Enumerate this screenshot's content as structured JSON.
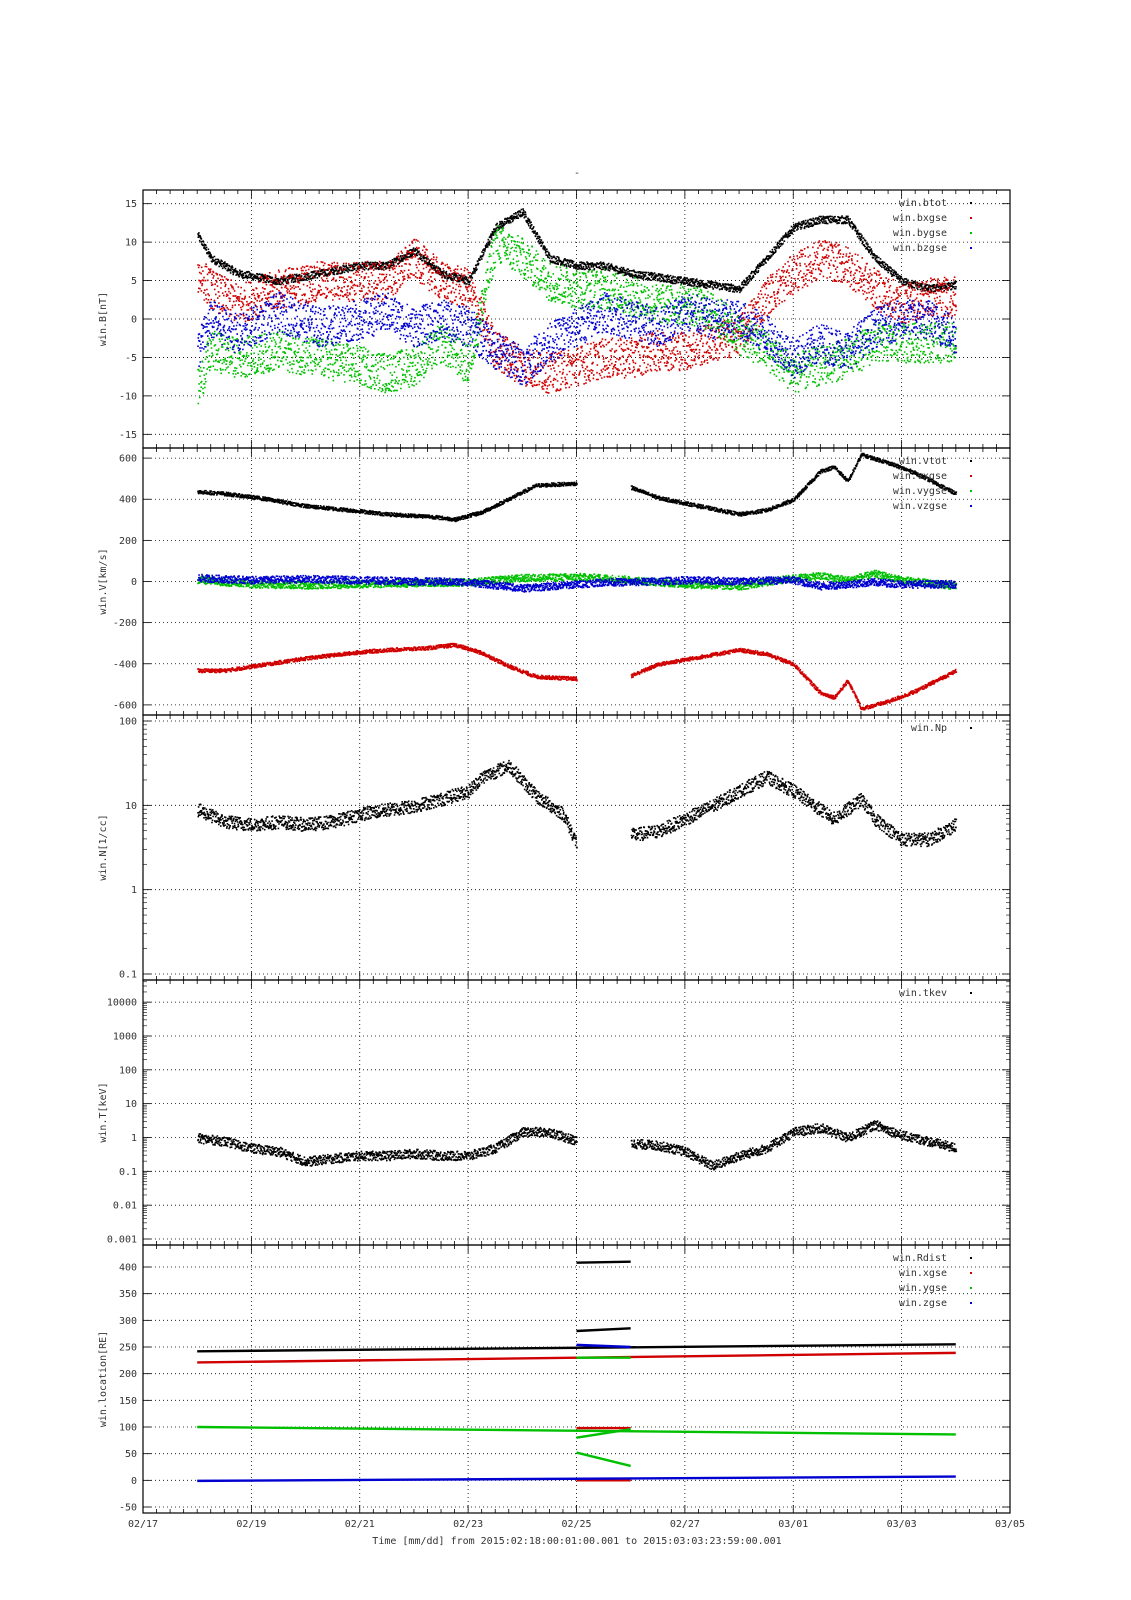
{
  "figure": {
    "title": "-",
    "footer": "Time [mm/dd]  from 2015:02:18:00:01:00.001  to  2015:03:03:23:59:00.001",
    "x_tick_labels": [
      "02/17",
      "02/19",
      "02/21",
      "02/23",
      "02/25",
      "02/27",
      "03/01",
      "03/03",
      "03/05"
    ]
  },
  "chart_data": [
    {
      "type": "scatter",
      "ylabel": "win.B[nT]",
      "xlim": [
        "2015-02-17",
        "2015-03-05"
      ],
      "ylim": [
        -16,
        16
      ],
      "yscale": "linear",
      "yticks": [
        -15,
        -10,
        -5,
        0,
        5,
        10,
        15
      ],
      "ytick_labels": [
        "-15",
        "-10",
        "-5",
        "0",
        "5",
        "10",
        "15"
      ],
      "grid": true,
      "legend_position": "top-right",
      "series": [
        {
          "name": "win.btot",
          "color": "#000000",
          "x": [
            "2015-02-18 00:00",
            "2015-02-18 06:00",
            "2015-02-18 18:00",
            "2015-02-19 12:00",
            "2015-02-20 06:00",
            "2015-02-21 00:00",
            "2015-02-21 12:00",
            "2015-02-22 00:00",
            "2015-02-22 12:00",
            "2015-02-23 00:00",
            "2015-02-23 12:00",
            "2015-02-24 00:00",
            "2015-02-24 12:00",
            "2015-02-25 00:00",
            "2015-02-25 12:00",
            "2015-02-26 00:00",
            "2015-02-26 12:00",
            "2015-02-27 00:00",
            "2015-02-27 12:00",
            "2015-02-28 00:00",
            "2015-02-28 12:00",
            "2015-03-01 00:00",
            "2015-03-01 12:00",
            "2015-03-02 00:00",
            "2015-03-02 12:00",
            "2015-03-03 00:00",
            "2015-03-03 12:00",
            "2015-03-03 23:59"
          ],
          "y": [
            11,
            8,
            6,
            5,
            6,
            7,
            7,
            9,
            6,
            5,
            12,
            14,
            8,
            7,
            7,
            6,
            5.5,
            5,
            4.5,
            4,
            8,
            12,
            13,
            13,
            8,
            5,
            4,
            4.5
          ]
        },
        {
          "name": "win.bxgse",
          "color": "#d00000",
          "x": [
            "2015-02-18 00:00",
            "2015-02-18 06:00",
            "2015-02-18 18:00",
            "2015-02-19 12:00",
            "2015-02-20 06:00",
            "2015-02-21 00:00",
            "2015-02-21 12:00",
            "2015-02-22 00:00",
            "2015-02-22 12:00",
            "2015-02-23 00:00",
            "2015-02-23 12:00",
            "2015-02-24 00:00",
            "2015-02-24 12:00",
            "2015-02-25 00:00",
            "2015-02-25 12:00",
            "2015-02-26 00:00",
            "2015-02-26 12:00",
            "2015-02-27 00:00",
            "2015-02-27 12:00",
            "2015-02-28 00:00",
            "2015-02-28 12:00",
            "2015-03-01 00:00",
            "2015-03-01 12:00",
            "2015-03-02 00:00",
            "2015-03-02 12:00",
            "2015-03-03 00:00",
            "2015-03-03 12:00",
            "2015-03-03 23:59"
          ],
          "y": [
            6,
            4,
            2,
            4,
            5,
            5,
            5,
            8,
            5,
            4,
            -4,
            -6,
            -7,
            -6,
            -5,
            -5,
            -4,
            -4,
            -3,
            -2,
            3,
            6,
            8,
            7,
            4,
            2,
            3,
            3
          ]
        },
        {
          "name": "win.bygse",
          "color": "#00c000",
          "x": [
            "2015-02-18 00:00",
            "2015-02-18 06:00",
            "2015-02-18 18:00",
            "2015-02-19 12:00",
            "2015-02-20 06:00",
            "2015-02-21 00:00",
            "2015-02-21 12:00",
            "2015-02-22 00:00",
            "2015-02-22 12:00",
            "2015-02-23 00:00",
            "2015-02-23 12:00",
            "2015-02-24 00:00",
            "2015-02-24 12:00",
            "2015-02-25 00:00",
            "2015-02-25 12:00",
            "2015-02-26 00:00",
            "2015-02-26 12:00",
            "2015-02-27 00:00",
            "2015-02-27 12:00",
            "2015-02-28 00:00",
            "2015-02-28 12:00",
            "2015-03-01 00:00",
            "2015-03-01 12:00",
            "2015-03-02 00:00",
            "2015-03-02 12:00",
            "2015-03-03 00:00",
            "2015-03-03 12:00",
            "2015-03-03 23:59"
          ],
          "y": [
            -9,
            -4,
            -5,
            -4,
            -5,
            -6,
            -7,
            -6,
            -3,
            -6,
            10,
            8,
            5,
            4,
            4,
            3,
            2,
            2,
            1,
            -2,
            -4,
            -7,
            -6,
            -5,
            -3,
            -3,
            -3,
            -3
          ]
        },
        {
          "name": "win.bzgse",
          "color": "#0000d0",
          "x": [
            "2015-02-18 00:00",
            "2015-02-18 06:00",
            "2015-02-18 18:00",
            "2015-02-19 12:00",
            "2015-02-20 06:00",
            "2015-02-21 00:00",
            "2015-02-21 12:00",
            "2015-02-22 00:00",
            "2015-02-22 12:00",
            "2015-02-23 00:00",
            "2015-02-23 12:00",
            "2015-02-24 00:00",
            "2015-02-24 12:00",
            "2015-02-25 00:00",
            "2015-02-25 12:00",
            "2015-02-26 00:00",
            "2015-02-26 12:00",
            "2015-02-27 00:00",
            "2015-02-27 12:00",
            "2015-02-28 00:00",
            "2015-02-28 12:00",
            "2015-03-01 00:00",
            "2015-03-01 12:00",
            "2015-03-02 00:00",
            "2015-03-02 12:00",
            "2015-03-03 00:00",
            "2015-03-03 12:00",
            "2015-03-03 23:59"
          ],
          "y": [
            -4,
            0,
            -2,
            1,
            -1,
            0,
            1,
            -1,
            0,
            -1,
            -4,
            -6,
            -3,
            -1,
            1,
            0,
            -1,
            1,
            0,
            0,
            -2,
            -5,
            -3,
            -4,
            -1,
            0,
            0,
            -2
          ]
        }
      ]
    },
    {
      "type": "scatter",
      "ylabel": "win.V[km/s]",
      "xlim": [
        "2015-02-17",
        "2015-03-05"
      ],
      "ylim": [
        -620,
        620
      ],
      "yscale": "linear",
      "yticks": [
        -600,
        -400,
        -200,
        0,
        200,
        400,
        600
      ],
      "ytick_labels": [
        "-600",
        "-400",
        "-200",
        "0",
        "200",
        "400",
        "600"
      ],
      "grid": true,
      "legend_position": "top-right",
      "series": [
        {
          "name": "win.vtot",
          "color": "#000000",
          "x": [
            "2015-02-18 00:00",
            "2015-02-18 12:00",
            "2015-02-19 06:00",
            "2015-02-20 00:00",
            "2015-02-21 00:00",
            "2015-02-21 12:00",
            "2015-02-22 06:00",
            "2015-02-22 18:00",
            "2015-02-23 06:00",
            "2015-02-23 18:00",
            "2015-02-24 06:00",
            "2015-02-25 00:00",
            null,
            "2015-02-26 00:00",
            "2015-02-26 12:00",
            "2015-02-27 06:00",
            "2015-02-28 00:00",
            "2015-02-28 12:00",
            "2015-03-01 00:00",
            "2015-03-01 12:00",
            "2015-03-01 18:00",
            "2015-03-02 00:00",
            "2015-03-02 06:00",
            "2015-03-02 18:00",
            "2015-03-03 06:00",
            "2015-03-03 23:59"
          ],
          "y": [
            440,
            430,
            405,
            370,
            345,
            330,
            320,
            305,
            340,
            405,
            470,
            480,
            null,
            460,
            410,
            370,
            330,
            350,
            400,
            540,
            560,
            490,
            620,
            580,
            530,
            430
          ]
        },
        {
          "name": "win.vxgse",
          "color": "#d00000",
          "x": [
            "2015-02-18 00:00",
            "2015-02-18 12:00",
            "2015-02-19 06:00",
            "2015-02-20 00:00",
            "2015-02-21 00:00",
            "2015-02-21 12:00",
            "2015-02-22 06:00",
            "2015-02-22 18:00",
            "2015-02-23 06:00",
            "2015-02-23 18:00",
            "2015-02-24 06:00",
            "2015-02-25 00:00",
            null,
            "2015-02-26 00:00",
            "2015-02-26 12:00",
            "2015-02-27 06:00",
            "2015-02-28 00:00",
            "2015-02-28 12:00",
            "2015-03-01 00:00",
            "2015-03-01 12:00",
            "2015-03-01 18:00",
            "2015-03-02 00:00",
            "2015-03-02 06:00",
            "2015-03-02 18:00",
            "2015-03-03 06:00",
            "2015-03-03 23:59"
          ],
          "y": [
            -430,
            -430,
            -400,
            -370,
            -340,
            -330,
            -320,
            -305,
            -345,
            -410,
            -460,
            -470,
            null,
            -455,
            -400,
            -365,
            -330,
            -350,
            -400,
            -540,
            -560,
            -480,
            -615,
            -580,
            -530,
            -430
          ]
        },
        {
          "name": "win.vygse",
          "color": "#00c000",
          "x": [
            "2015-02-18 00:00",
            "2015-02-19 00:00",
            "2015-02-20 00:00",
            "2015-02-21 00:00",
            "2015-02-22 00:00",
            "2015-02-23 00:00",
            "2015-02-24 00:00",
            "2015-02-25 00:00",
            "2015-02-25 12:00",
            "2015-02-26 00:00",
            "2015-02-27 00:00",
            "2015-02-28 00:00",
            "2015-03-01 00:00",
            "2015-03-01 12:00",
            "2015-03-02 00:00",
            "2015-03-02 12:00",
            "2015-03-03 00:00",
            "2015-03-03 23:59"
          ],
          "y": [
            10,
            -10,
            -15,
            -10,
            -5,
            0,
            20,
            25,
            20,
            10,
            -10,
            -20,
            20,
            30,
            10,
            40,
            10,
            -20
          ]
        },
        {
          "name": "win.vzgse",
          "color": "#0000d0",
          "x": [
            "2015-02-18 00:00",
            "2015-02-19 00:00",
            "2015-02-20 00:00",
            "2015-02-21 00:00",
            "2015-02-22 00:00",
            "2015-02-23 00:00",
            "2015-02-24 00:00",
            "2015-02-25 00:00",
            "2015-02-25 12:00",
            "2015-02-26 00:00",
            "2015-02-27 00:00",
            "2015-02-28 00:00",
            "2015-03-01 00:00",
            "2015-03-01 12:00",
            "2015-03-02 00:00",
            "2015-03-02 12:00",
            "2015-03-03 00:00",
            "2015-03-03 23:59"
          ],
          "y": [
            20,
            10,
            15,
            10,
            5,
            0,
            -30,
            -10,
            0,
            0,
            10,
            5,
            10,
            -20,
            -10,
            0,
            -10,
            -10
          ]
        }
      ]
    },
    {
      "type": "scatter",
      "ylabel": "win.N[1/cc]",
      "xlim": [
        "2015-02-17",
        "2015-03-05"
      ],
      "ylim": [
        0.1,
        100
      ],
      "yscale": "log",
      "yticks": [
        0.1,
        1,
        10,
        100
      ],
      "ytick_labels": [
        "0.1",
        "1",
        "10",
        "100"
      ],
      "grid": true,
      "legend_position": "top-right",
      "series": [
        {
          "name": "win.Np",
          "color": "#000000",
          "x": [
            "2015-02-18 00:00",
            "2015-02-18 12:00",
            "2015-02-19 00:00",
            "2015-02-19 12:00",
            "2015-02-20 00:00",
            "2015-02-20 12:00",
            "2015-02-21 00:00",
            "2015-02-21 12:00",
            "2015-02-22 00:00",
            "2015-02-22 12:00",
            "2015-02-23 00:00",
            "2015-02-23 06:00",
            "2015-02-23 18:00",
            "2015-02-24 06:00",
            "2015-02-24 18:00",
            "2015-02-25 00:00",
            null,
            "2015-02-26 00:00",
            "2015-02-26 12:00",
            "2015-02-27 00:00",
            "2015-02-27 12:00",
            "2015-02-28 00:00",
            "2015-02-28 12:00",
            "2015-03-01 00:00",
            "2015-03-01 12:00",
            "2015-03-01 18:00",
            "2015-03-02 06:00",
            "2015-03-02 12:00",
            "2015-03-03 00:00",
            "2015-03-03 12:00",
            "2015-03-03 23:59"
          ],
          "y": [
            9,
            6.5,
            6,
            6.5,
            6,
            6.5,
            8,
            9,
            10,
            12,
            15,
            22,
            30,
            13,
            8,
            3.5,
            null,
            4.5,
            5,
            7,
            10,
            15,
            22,
            15,
            9,
            7,
            12,
            7,
            4,
            4,
            6
          ]
        }
      ]
    },
    {
      "type": "scatter",
      "ylabel": "win.T[keV]",
      "xlim": [
        "2015-02-17",
        "2015-03-05"
      ],
      "ylim": [
        0.001,
        30000
      ],
      "yscale": "log",
      "yticks": [
        0.001,
        0.01,
        0.1,
        1,
        10,
        100,
        1000,
        10000
      ],
      "ytick_labels": [
        "0.001",
        "0.01",
        "0.1",
        "1",
        "10",
        "100",
        "1000",
        "10000"
      ],
      "grid": true,
      "legend_position": "top-right",
      "series": [
        {
          "name": "win.tkev",
          "color": "#000000",
          "x": [
            "2015-02-18 00:00",
            "2015-02-18 12:00",
            "2015-02-19 00:00",
            "2015-02-19 12:00",
            "2015-02-20 00:00",
            "2015-02-20 12:00",
            "2015-02-21 00:00",
            "2015-02-21 12:00",
            "2015-02-22 00:00",
            "2015-02-22 12:00",
            "2015-02-23 00:00",
            "2015-02-23 12:00",
            "2015-02-24 00:00",
            "2015-02-24 12:00",
            "2015-02-25 00:00",
            null,
            "2015-02-26 00:00",
            "2015-02-26 12:00",
            "2015-02-27 00:00",
            "2015-02-27 12:00",
            "2015-02-28 00:00",
            "2015-02-28 12:00",
            "2015-03-01 00:00",
            "2015-03-01 12:00",
            "2015-03-02 00:00",
            "2015-03-02 12:00",
            "2015-03-03 00:00",
            "2015-03-03 12:00",
            "2015-03-03 23:59"
          ],
          "y": [
            1,
            0.8,
            0.5,
            0.4,
            0.2,
            0.25,
            0.3,
            0.3,
            0.35,
            0.3,
            0.3,
            0.5,
            1.5,
            1.5,
            0.8,
            null,
            0.7,
            0.6,
            0.4,
            0.15,
            0.3,
            0.5,
            1.5,
            2,
            1,
            2.5,
            1.2,
            0.8,
            0.5
          ]
        }
      ]
    },
    {
      "type": "line",
      "ylabel": "win.location[RE]",
      "xlim": [
        "2015-02-17",
        "2015-03-05"
      ],
      "ylim": [
        -50,
        430
      ],
      "yscale": "linear",
      "yticks": [
        -50,
        0,
        50,
        100,
        150,
        200,
        250,
        300,
        350,
        400
      ],
      "ytick_labels": [
        "-50",
        "0",
        "50",
        "100",
        "150",
        "200",
        "250",
        "300",
        "350",
        "400"
      ],
      "grid": true,
      "legend_position": "top-right",
      "series": [
        {
          "name": "win.Rdist",
          "color": "#000000",
          "segments": [
            {
              "x": [
                "2015-02-18 00:00",
                "2015-03-03 23:59"
              ],
              "y": [
                242,
                255
              ]
            },
            {
              "x": [
                "2015-02-25 00:00",
                "2015-02-26 00:00"
              ],
              "y": [
                408,
                410
              ]
            },
            {
              "x": [
                "2015-02-25 00:00",
                "2015-02-26 00:00"
              ],
              "y": [
                280,
                285
              ]
            }
          ]
        },
        {
          "name": "win.xgse",
          "color": "#d00000",
          "segments": [
            {
              "x": [
                "2015-02-18 00:00",
                "2015-03-03 23:59"
              ],
              "y": [
                221,
                239
              ]
            },
            {
              "x": [
                "2015-02-25 00:00",
                "2015-02-26 00:00"
              ],
              "y": [
                98,
                98
              ]
            },
            {
              "x": [
                "2015-02-25 00:00",
                "2015-02-26 00:00"
              ],
              "y": [
                0,
                0
              ]
            }
          ]
        },
        {
          "name": "win.ygse",
          "color": "#00c000",
          "segments": [
            {
              "x": [
                "2015-02-18 00:00",
                "2015-03-03 23:59"
              ],
              "y": [
                100,
                86
              ]
            },
            {
              "x": [
                "2015-02-25 00:00",
                "2015-02-26 00:00"
              ],
              "y": [
                230,
                230
              ]
            },
            {
              "x": [
                "2015-02-25 00:00",
                "2015-02-26 00:00"
              ],
              "y": [
                80,
                96
              ]
            },
            {
              "x": [
                "2015-02-25 00:00",
                "2015-02-26 00:00"
              ],
              "y": [
                52,
                27
              ]
            }
          ]
        },
        {
          "name": "win.zgse",
          "color": "#0000d0",
          "segments": [
            {
              "x": [
                "2015-02-18 00:00",
                "2015-03-03 23:59"
              ],
              "y": [
                -1,
                7
              ]
            },
            {
              "x": [
                "2015-02-25 00:00",
                "2015-02-26 00:00"
              ],
              "y": [
                254,
                250
              ]
            }
          ]
        }
      ]
    }
  ]
}
